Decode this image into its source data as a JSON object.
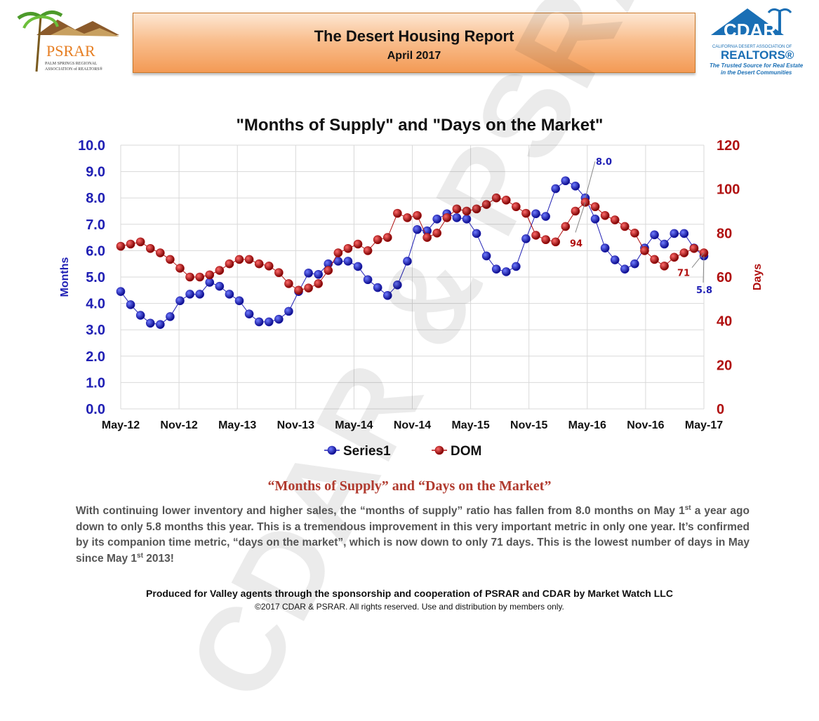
{
  "header": {
    "title": "The Desert Housing Report",
    "subtitle": "April 2017"
  },
  "logos": {
    "left": {
      "text": "PSRAR",
      "caption1": "PALM SPRINGS REGIONAL",
      "caption2": "ASSOCIATION of REALTORS®"
    },
    "right": {
      "text": "CDAR",
      "caption1": "CALIFORNIA DESERT ASSOCIATION OF",
      "caption2": "REALTORS®",
      "tagline1": "The Trusted Source for Real Estate",
      "tagline2": "in the Desert Communities"
    }
  },
  "watermark": "CDAR & PSRAR",
  "chart_data": {
    "type": "line",
    "title": "\"Months of Supply\" and \"Days on the Market\"",
    "ylabel": "Months",
    "y2label": "Days",
    "ylim": [
      0,
      10
    ],
    "y2lim": [
      0,
      120
    ],
    "yticks": [
      "0.0",
      "1.0",
      "2.0",
      "3.0",
      "4.0",
      "5.0",
      "6.0",
      "7.0",
      "8.0",
      "9.0",
      "10.0"
    ],
    "y2ticks": [
      "0",
      "20",
      "40",
      "60",
      "80",
      "100",
      "120"
    ],
    "xticklabels": [
      "May-12",
      "Nov-12",
      "May-13",
      "Nov-13",
      "May-14",
      "Nov-14",
      "May-15",
      "Nov-15",
      "May-16",
      "Nov-16",
      "May-17"
    ],
    "grid": true,
    "legend_position": "bottom",
    "series": [
      {
        "name": "Series1",
        "axis": "left",
        "color": "#1f1fb4",
        "values": [
          4.45,
          3.95,
          3.55,
          3.25,
          3.2,
          3.5,
          4.1,
          4.35,
          4.35,
          4.8,
          4.65,
          4.35,
          4.1,
          3.6,
          3.3,
          3.3,
          3.4,
          3.7,
          4.45,
          5.15,
          5.1,
          5.5,
          5.6,
          5.6,
          5.4,
          4.9,
          4.6,
          4.3,
          4.7,
          5.6,
          6.8,
          6.75,
          7.2,
          7.4,
          7.25,
          7.2,
          6.65,
          5.8,
          5.3,
          5.2,
          5.4,
          6.45,
          7.4,
          7.3,
          8.35,
          8.65,
          8.45,
          8.0,
          7.2,
          6.1,
          5.65,
          5.3,
          5.5,
          6.1,
          6.6,
          6.25,
          6.65,
          6.65,
          6.1,
          5.8
        ]
      },
      {
        "name": "DOM",
        "axis": "right",
        "color": "#b01010",
        "values": [
          74,
          75,
          76,
          73,
          71,
          68,
          64,
          60,
          60,
          61,
          63,
          66,
          68,
          68,
          66,
          65,
          62,
          57,
          54,
          55,
          57,
          63,
          71,
          73,
          75,
          72,
          77,
          78,
          89,
          87,
          88,
          78,
          80,
          87,
          91,
          90,
          91,
          93,
          96,
          95,
          92,
          89,
          79,
          77,
          76,
          83,
          90,
          94,
          92,
          88,
          86,
          83,
          80,
          72,
          68,
          65,
          69,
          71,
          73,
          71
        ]
      }
    ],
    "annotations": [
      {
        "text": "8.0",
        "series": "Series1",
        "index": 47
      },
      {
        "text": "5.8",
        "series": "Series1",
        "index": 59
      },
      {
        "text": "94",
        "series": "DOM",
        "index": 47
      },
      {
        "text": "71",
        "series": "DOM",
        "index": 59
      }
    ]
  },
  "section_title": "“Months of Supply” and “Days on the Market”",
  "body": {
    "p1": "With continuing lower inventory and higher sales, the “months of supply” ratio has fallen from 8.0 months on May 1",
    "sup1": "st",
    "p2": " a year ago down to only 5.8 months this year. This is a tremendous improvement in this very important metric in only one year. It’s confirmed by its companion time metric, “days on the market”, which is now down to only 71 days. This is the lowest number of days in May since May 1",
    "sup2": "st",
    "p3": " 2013!"
  },
  "footer": {
    "line1": "Produced for Valley agents through the sponsorship and cooperation of PSRAR and CDAR by Market Watch LLC",
    "line2": "©2017 CDAR & PSRAR.  All rights reserved.  Use and distribution by members only."
  }
}
